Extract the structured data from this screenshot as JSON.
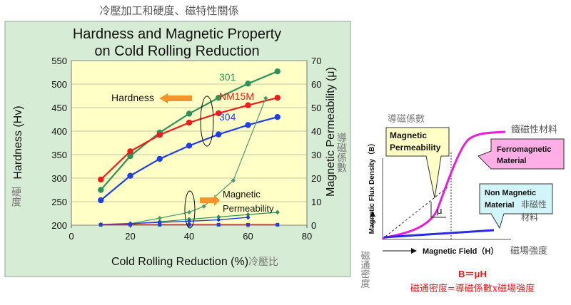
{
  "header": {
    "title_zh": "冷壓加工和硬度、磁特性關係"
  },
  "colors": {
    "frame": "#d7ecd4",
    "plot_bg": "#ffffc6",
    "series_301": "#2e9158",
    "series_nm15m": "#ee1c1c",
    "series_304": "#1f3de8",
    "permeability": "#4a9a72",
    "arrow": "#f2962b",
    "ferro": "#e81ed8",
    "nonmag": "#2a2ae0",
    "callout_yellow": "#ffffc6",
    "callout_pink": "#ffaee6",
    "callout_cyan": "#d2f5f9",
    "formula": "#e41b1b",
    "zh_gray": "#777777"
  },
  "chart_data": [
    {
      "type": "line",
      "title": "Hardness and Magnetic Property on Cold Rolling Reduction",
      "title_lines": [
        "Hardness and Magnetic Property",
        "on Cold Rolling Reduction"
      ],
      "xlabel": "Cold Rolling Reduction (%)",
      "xlabel_zh": "冷壓比",
      "ylabel": "Hardness (Hv)",
      "ylabel_zh": "硬度",
      "y2label": "Magnetic Permeability (μ)",
      "y2label_zh": "導磁係數",
      "xlim": [
        0,
        80
      ],
      "ylim": [
        200,
        550
      ],
      "y2lim": [
        0,
        70
      ],
      "xticks": [
        0,
        20,
        40,
        60,
        80
      ],
      "yticks": [
        200,
        250,
        300,
        350,
        400,
        450,
        500,
        550
      ],
      "y2ticks": [
        0,
        10,
        20,
        30,
        40,
        50,
        60,
        70
      ],
      "grid": true,
      "series": [
        {
          "name": "301",
          "axis": "left",
          "x": [
            10,
            20,
            30,
            40,
            50,
            60,
            70
          ],
          "values": [
            275,
            347,
            397,
            437,
            471,
            501,
            527
          ]
        },
        {
          "name": "NM15M",
          "axis": "left",
          "x": [
            10,
            20,
            30,
            40,
            50,
            60,
            70
          ],
          "values": [
            297,
            357,
            392,
            418,
            438,
            455,
            471
          ]
        },
        {
          "name": "304",
          "axis": "left",
          "x": [
            10,
            20,
            30,
            40,
            50,
            60,
            70
          ],
          "values": [
            253,
            305,
            341,
            369,
            393,
            413,
            430
          ]
        },
        {
          "name": "301 μ",
          "axis": "right",
          "x": [
            10,
            20,
            30,
            40,
            50,
            60,
            70
          ],
          "values": [
            0.2,
            0.5,
            1.5,
            2.5,
            3.5,
            4.5,
            5.5
          ],
          "markers": true
        },
        {
          "name": "301 μ trend",
          "axis": "right",
          "x": [
            10,
            20,
            30,
            40,
            45,
            55,
            66
          ],
          "values": [
            0.2,
            0.6,
            3,
            5.5,
            8,
            19,
            54
          ],
          "markers": true
        },
        {
          "name": "304 μ",
          "axis": "right",
          "x": [
            10,
            20,
            30,
            40,
            50,
            60
          ],
          "values": [
            0.3,
            0.7,
            1.2,
            1.7,
            2.3,
            3.3
          ]
        },
        {
          "name": "NM15M μ",
          "axis": "right",
          "x": [
            10,
            70
          ],
          "values": [
            0.2,
            0.2
          ]
        }
      ],
      "annotations": {
        "hardness": "Hardness",
        "magnetic": "Magnetic",
        "permeability": "Permeability"
      }
    },
    {
      "type": "line",
      "xlabel": "Magnetic Field（H）",
      "xlabel_zh": "磁場強度",
      "ylabel": "Magnetic Flux Density（B）",
      "ylabel_zh": "磁通密度",
      "series": [
        {
          "name": "Ferromagnetic Material",
          "shape": "s-curve"
        },
        {
          "name": "Non Magnetic Material",
          "shape": "linear"
        }
      ],
      "annotations": {
        "top_zh": "導磁係數",
        "callout_perm": "Magnetic Permeability",
        "mu": "μ",
        "ferro_zh": "鐵磁性材料",
        "ferro_label": "Ferromagnetic Material",
        "nonmag_label": "Non Magnetic Material",
        "nonmag_zh": "非磁性材料",
        "formula": "B＝μH",
        "formula_zh": "磁通密度=導磁係數x磁場強度"
      }
    }
  ]
}
